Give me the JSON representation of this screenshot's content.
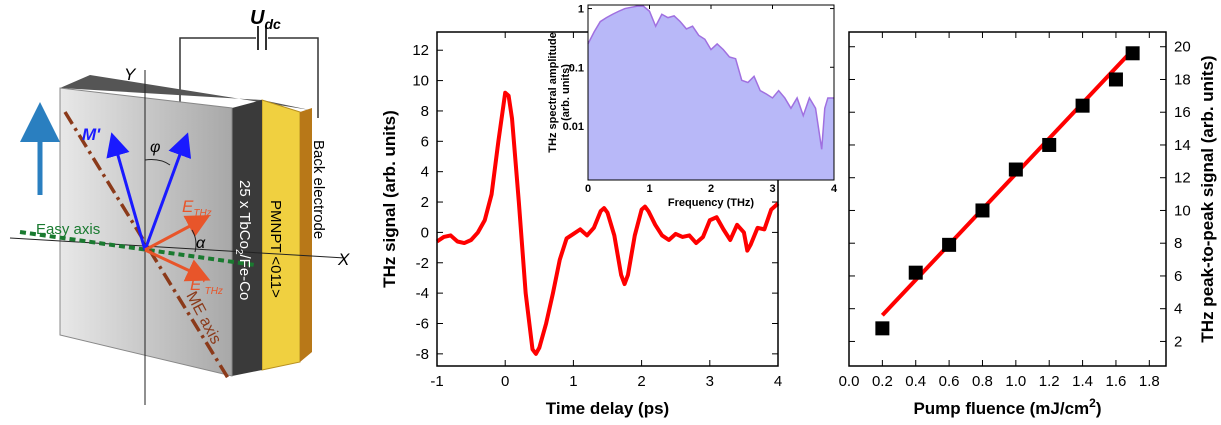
{
  "diagram": {
    "voltage_label": "U",
    "voltage_sub": "dc",
    "y_axis": "Y",
    "x_axis": "X",
    "m_label": "M'",
    "phi": "φ",
    "e_label": "E",
    "e_sub": "THz",
    "alpha": "α",
    "e2_label": "E'",
    "e2_sub": "THz",
    "easy_axis": "Easy axis",
    "me_axis": "ME axis",
    "layers_a": "25 x TbCo",
    "layers_sub": "2",
    "layers_b": "/Fe-Co",
    "substrate": "PMNPT <011>",
    "electrode": "Back electrode"
  },
  "chart_data": [
    {
      "type": "line",
      "x_label": "Time delay (ps)",
      "y_label": "THz signal (arb. units)",
      "x": [
        -1,
        -0.9,
        -0.8,
        -0.7,
        -0.6,
        -0.5,
        -0.4,
        -0.3,
        -0.2,
        -0.1,
        0,
        0.05,
        0.1,
        0.2,
        0.3,
        0.4,
        0.45,
        0.5,
        0.6,
        0.7,
        0.8,
        0.9,
        1.0,
        1.1,
        1.2,
        1.3,
        1.4,
        1.45,
        1.5,
        1.6,
        1.7,
        1.75,
        1.8,
        1.9,
        2.0,
        2.05,
        2.1,
        2.2,
        2.3,
        2.4,
        2.5,
        2.6,
        2.7,
        2.8,
        2.9,
        3.0,
        3.1,
        3.2,
        3.3,
        3.4,
        3.5,
        3.55,
        3.6,
        3.7,
        3.8,
        3.9,
        4.0
      ],
      "series": [
        {
          "color": "#ff0000",
          "values": [
            -0.6,
            -0.3,
            -0.2,
            -0.6,
            -0.7,
            -0.5,
            0.0,
            0.8,
            2.5,
            6,
            9.2,
            9.0,
            7.5,
            2,
            -4,
            -7.7,
            -8,
            -7.6,
            -6,
            -4,
            -1.8,
            -0.4,
            -0.1,
            0.2,
            -0.2,
            0.3,
            1.4,
            1.6,
            1.3,
            -0.2,
            -2.8,
            -3.4,
            -2.8,
            -0.2,
            1.5,
            1.7,
            1.4,
            0.5,
            -0.2,
            -0.5,
            -0.1,
            -0.3,
            -0.2,
            -0.7,
            -0.3,
            0.8,
            1.0,
            0.2,
            -0.5,
            0.5,
            0.0,
            -1.2,
            -0.8,
            0.3,
            0.2,
            1.5,
            1.9
          ]
        }
      ],
      "xlim": [
        -1,
        4
      ],
      "ylim": [
        -8.8,
        13.2
      ],
      "xticks": [
        -1,
        0,
        1,
        2,
        3,
        4
      ],
      "yticks": [
        -8,
        -6,
        -4,
        -2,
        0,
        2,
        4,
        6,
        8,
        10,
        12
      ]
    },
    {
      "type": "area",
      "log_y": true,
      "x_label": "Frequency (THz)",
      "y_label": [
        "THz spectral amplitude",
        "(arb. units)"
      ],
      "x": [
        0,
        0.1,
        0.2,
        0.3,
        0.4,
        0.5,
        0.6,
        0.7,
        0.8,
        0.9,
        1.0,
        1.1,
        1.2,
        1.3,
        1.4,
        1.5,
        1.6,
        1.7,
        1.8,
        1.9,
        2.0,
        2.1,
        2.2,
        2.3,
        2.4,
        2.5,
        2.6,
        2.7,
        2.8,
        2.9,
        3.0,
        3.1,
        3.2,
        3.3,
        3.4,
        3.5,
        3.6,
        3.7,
        3.8,
        3.85,
        3.9,
        4.0
      ],
      "series": [
        {
          "color": "#a070e0",
          "fill": "#b8b8f8",
          "values": [
            0.25,
            0.4,
            0.6,
            0.7,
            0.8,
            0.9,
            1.0,
            1.05,
            1.1,
            1.1,
            0.9,
            0.5,
            0.8,
            0.7,
            0.75,
            0.6,
            0.45,
            0.5,
            0.35,
            0.3,
            0.2,
            0.25,
            0.2,
            0.15,
            0.14,
            0.06,
            0.055,
            0.07,
            0.04,
            0.035,
            0.03,
            0.04,
            0.03,
            0.02,
            0.03,
            0.015,
            0.03,
            0.02,
            0.004,
            0.02,
            0.03,
            0.03
          ]
        }
      ],
      "xlim": [
        0,
        4
      ],
      "ylim": [
        0.0012,
        1.15
      ],
      "xticks": [
        0,
        1,
        2,
        3,
        4
      ],
      "yticks": [
        0.01,
        0.1,
        1
      ]
    },
    {
      "type": "scatter",
      "x_label": "Pump fluence (mJ/cm",
      "x_label_sup": "2",
      "x_label_end": ")",
      "y_label": "THz peak-to-peak signal (arb. units)",
      "y_axis_side": "right",
      "series": [
        {
          "color": "#000000",
          "x": [
            0.2,
            0.4,
            0.6,
            0.8,
            1.0,
            1.2,
            1.4,
            1.6,
            1.7
          ],
          "values": [
            2.8,
            6.2,
            7.9,
            10.0,
            12.5,
            14.0,
            16.4,
            18.0,
            19.6
          ]
        }
      ],
      "fit": {
        "color": "#ff0000",
        "x": [
          0.2,
          1.7
        ],
        "values": [
          3.6,
          19.8
        ]
      },
      "xlim": [
        0,
        1.9
      ],
      "ylim": [
        0.5,
        20.9
      ],
      "xticks": [
        {
          "value": 0,
          "label": "0.0"
        },
        0.2,
        0.4,
        0.6,
        0.8,
        {
          "value": 1,
          "label": "1.0"
        },
        1.2,
        1.4,
        1.6,
        1.8
      ],
      "yticks": [
        2,
        4,
        6,
        8,
        10,
        12,
        14,
        16,
        18,
        20
      ]
    }
  ]
}
